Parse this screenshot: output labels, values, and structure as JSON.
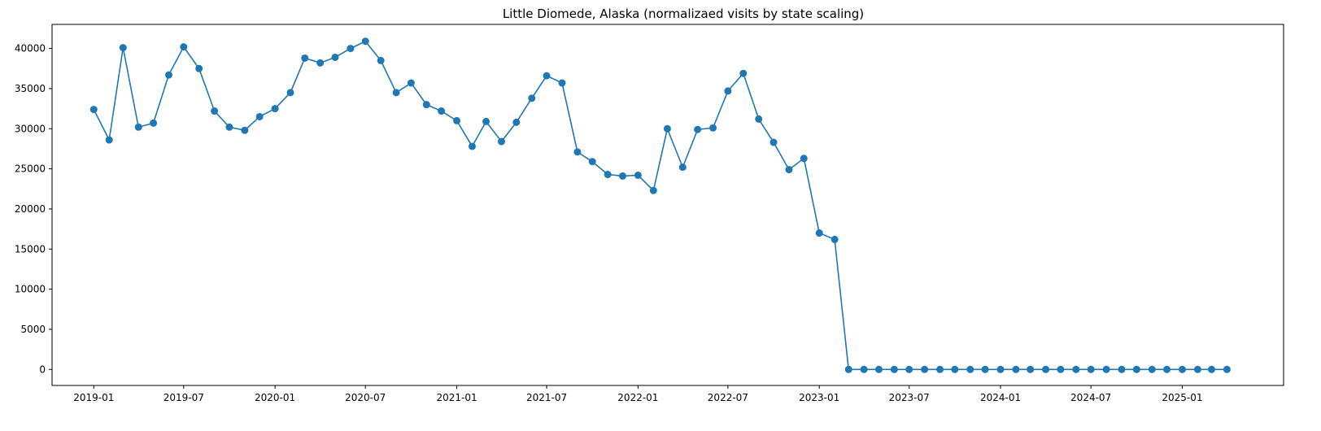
{
  "chart_data": {
    "type": "line",
    "title": "Little Diomede, Alaska (normalizaed visits by state scaling)",
    "xlabel": "",
    "ylabel": "",
    "grid": false,
    "legend": "none",
    "marker": "circle",
    "color": "#1f77b4",
    "xlim": [
      "2018-10-09",
      "2025-07-24"
    ],
    "ylim": [
      -2000,
      43000
    ],
    "x_ticks": [
      "2019-01",
      "2019-07",
      "2020-01",
      "2020-07",
      "2021-01",
      "2021-07",
      "2022-01",
      "2022-07",
      "2023-01",
      "2023-07",
      "2024-01",
      "2024-07",
      "2025-01"
    ],
    "y_ticks": [
      0,
      5000,
      10000,
      15000,
      20000,
      25000,
      30000,
      35000,
      40000
    ],
    "series": [
      {
        "x": [
          "2019-01",
          "2019-02",
          "2019-03",
          "2019-04",
          "2019-05",
          "2019-06",
          "2019-07",
          "2019-08",
          "2019-09",
          "2019-10",
          "2019-11",
          "2019-12",
          "2020-01",
          "2020-02",
          "2020-03",
          "2020-04",
          "2020-05",
          "2020-06",
          "2020-07",
          "2020-08",
          "2020-09",
          "2020-10",
          "2020-11",
          "2020-12",
          "2021-01",
          "2021-02",
          "2021-03",
          "2021-04",
          "2021-05",
          "2021-06",
          "2021-07",
          "2021-08",
          "2021-09",
          "2021-10",
          "2021-11",
          "2021-12",
          "2022-01",
          "2022-02",
          "2022-03",
          "2022-04",
          "2022-05",
          "2022-06",
          "2022-07",
          "2022-08",
          "2022-09",
          "2022-10",
          "2022-11",
          "2022-12",
          "2023-01",
          "2023-02",
          "2023-03",
          "2023-04",
          "2023-05",
          "2023-06",
          "2023-07",
          "2023-08",
          "2023-09",
          "2023-10",
          "2023-11",
          "2023-12",
          "2024-01",
          "2024-02",
          "2024-03",
          "2024-04",
          "2024-05",
          "2024-06",
          "2024-07",
          "2024-08",
          "2024-09",
          "2024-10",
          "2024-11",
          "2024-12",
          "2025-01",
          "2025-02",
          "2025-03",
          "2025-04"
        ],
        "y": [
          32400,
          28600,
          40100,
          30200,
          30700,
          36700,
          40200,
          37500,
          32200,
          30200,
          29800,
          31500,
          32500,
          34500,
          38800,
          38200,
          38900,
          40000,
          40900,
          38500,
          34500,
          35700,
          33000,
          32200,
          31000,
          27800,
          30900,
          28400,
          30800,
          33800,
          36600,
          35700,
          27100,
          25900,
          24300,
          24100,
          24200,
          22300,
          30000,
          25200,
          29900,
          30100,
          34700,
          36900,
          31200,
          28300,
          24900,
          26300,
          17000,
          16200,
          0,
          0,
          0,
          0,
          0,
          0,
          0,
          0,
          0,
          0,
          0,
          0,
          0,
          0,
          0,
          0,
          0,
          0,
          0,
          0,
          0,
          0,
          0,
          0,
          0,
          0
        ]
      }
    ]
  }
}
